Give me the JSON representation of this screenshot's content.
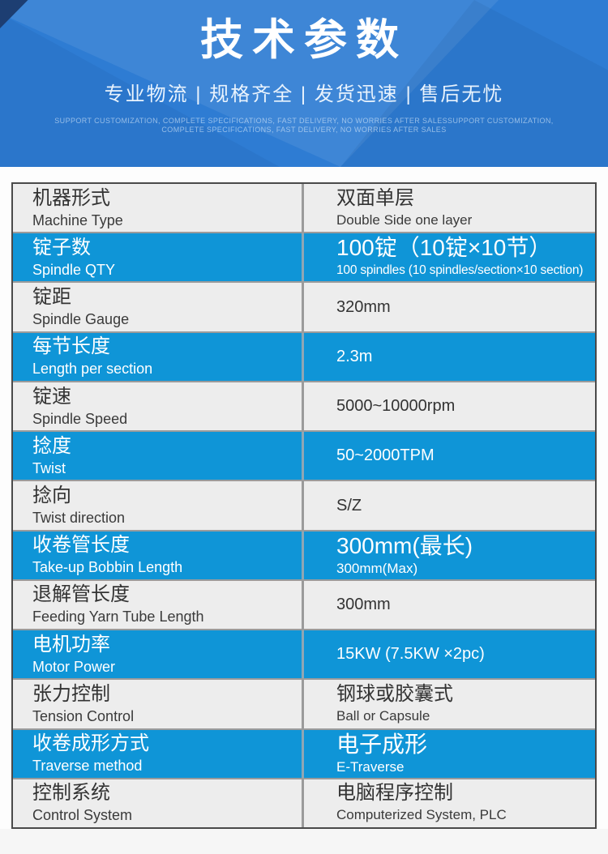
{
  "banner": {
    "title": "技术参数",
    "subtitle": "专业物流 | 规格齐全 | 发货迅速 | 售后无忧",
    "tagline_line1": "SUPPORT CUSTOMIZATION, COMPLETE SPECIFICATIONS, FAST DELIVERY, NO WORRIES AFTER SALESSUPPORT CUSTOMIZATION,",
    "tagline_line2": "COMPLETE SPECIFICATIONS, FAST DELIVERY, NO WORRIES AFTER SALES",
    "colors": {
      "base_blue": "#2e7cd3",
      "corner_navy": "#1d3e72",
      "text": "#ffffff"
    }
  },
  "table": {
    "colors": {
      "highlight_row_blue": "#0f95d7",
      "plain_row_gray": "#ededed",
      "outer_border": "#4a4a4a",
      "inner_border": "#9b9b9b",
      "dark_text": "#333333",
      "light_text": "#ffffff"
    },
    "rows": [
      {
        "label_zh": "机器形式",
        "label_en": "Machine Type",
        "two_line": true,
        "value_zh": "双面单层",
        "value_en": "Double Side one layer",
        "highlight": false
      },
      {
        "label_zh": "锭子数",
        "label_en": "Spindle QTY",
        "two_line": true,
        "value_zh": "100锭（10锭×10节）",
        "value_en": "100 spindles (10 spindles/section×10 section)",
        "highlight": true,
        "compact_en": true
      },
      {
        "label_zh": "锭距",
        "label_en": "Spindle Gauge",
        "two_line": false,
        "value": "320mm",
        "highlight": false
      },
      {
        "label_zh": "每节长度",
        "label_en": "Length per section",
        "two_line": false,
        "value": "2.3m",
        "highlight": true
      },
      {
        "label_zh": "锭速",
        "label_en": "Spindle Speed",
        "two_line": false,
        "value": "5000~10000rpm",
        "highlight": false
      },
      {
        "label_zh": "捻度",
        "label_en": "Twist",
        "two_line": false,
        "value": "50~2000TPM",
        "highlight": true
      },
      {
        "label_zh": "捻向",
        "label_en": "Twist direction",
        "two_line": false,
        "value": "S/Z",
        "highlight": false
      },
      {
        "label_zh": "收卷管长度",
        "label_en": "Take-up Bobbin Length",
        "two_line": true,
        "value_zh": "300mm(最长)",
        "value_en": "300mm(Max)",
        "highlight": true
      },
      {
        "label_zh": "退解管长度",
        "label_en": "Feeding Yarn Tube Length",
        "two_line": false,
        "value": "300mm",
        "highlight": false
      },
      {
        "label_zh": "电机功率",
        "label_en": "Motor Power",
        "two_line": false,
        "value": "15KW (7.5KW ×2pc)",
        "highlight": true
      },
      {
        "label_zh": "张力控制",
        "label_en": "Tension Control",
        "two_line": true,
        "value_zh": "钢球或胶囊式",
        "value_en": "Ball or Capsule",
        "highlight": false
      },
      {
        "label_zh": "收卷成形方式",
        "label_en": "Traverse method",
        "two_line": true,
        "value_zh": "电子成形",
        "value_en": "E-Traverse",
        "highlight": true
      },
      {
        "label_zh": "控制系统",
        "label_en": "Control System",
        "two_line": true,
        "value_zh": "电脑程序控制",
        "value_en": "Computerized System, PLC",
        "highlight": false
      }
    ]
  }
}
